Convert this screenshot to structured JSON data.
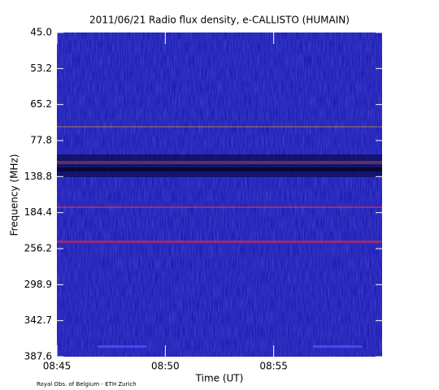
{
  "chart_data": {
    "type": "spectrogram",
    "title": "2011/06/21  Radio flux density, e-CALLISTO (HUMAIN)",
    "x_label": "Time (UT)",
    "y_label": "Frequency (MHz)",
    "credit": "Royal Obs. of Belgium - ETH Zurich",
    "xlim": [
      "08:45",
      "09:00"
    ],
    "xticks": [
      "08:45",
      "08:50",
      "08:55"
    ],
    "yticks": [
      {
        "value": 45,
        "label": "45.0"
      },
      {
        "value": 53.2,
        "label": "53.2"
      },
      {
        "value": 65.2,
        "label": "65.2"
      },
      {
        "value": 77.8,
        "label": "77.8"
      },
      {
        "value": 138.8,
        "label": "138.8"
      },
      {
        "value": 184.4,
        "label": "184.4"
      },
      {
        "value": 256.2,
        "label": "256.2"
      },
      {
        "value": 298.9,
        "label": "298.9"
      },
      {
        "value": 342.7,
        "label": "342.7"
      },
      {
        "value": 387.6,
        "label": "387.6"
      }
    ],
    "yscale": "channel"
  }
}
